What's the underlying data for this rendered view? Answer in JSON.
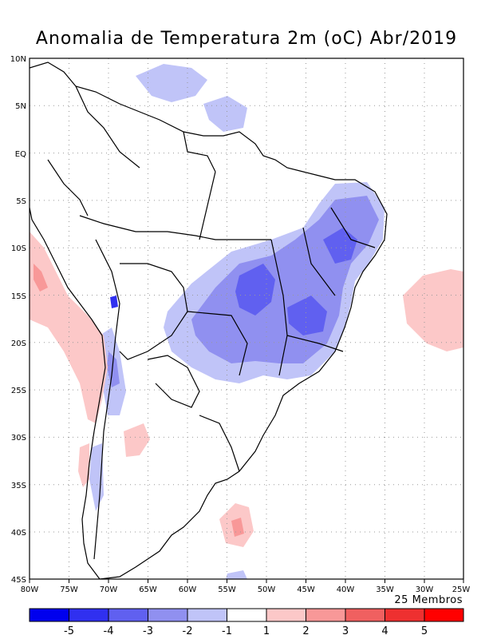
{
  "title": "Anomalia de Temperatura 2m (oC) Abr/2019",
  "members_label": "25 Membros",
  "map": {
    "lon_range": [
      -80,
      -25
    ],
    "lat_range": [
      -45,
      10
    ],
    "lon_ticks": [
      "80W",
      "75W",
      "70W",
      "65W",
      "60W",
      "55W",
      "50W",
      "45W",
      "40W",
      "35W",
      "30W",
      "25W"
    ],
    "lat_ticks": [
      "10N",
      "5N",
      "EQ",
      "5S",
      "10S",
      "15S",
      "20S",
      "25S",
      "30S",
      "35S",
      "40S",
      "45S"
    ],
    "regions": [
      {
        "name": "northeast-brazil-cold",
        "category": -3
      },
      {
        "name": "central-brazil-cold",
        "category": -3
      },
      {
        "name": "pacific-warm",
        "category": 1
      },
      {
        "name": "atlantic-warm",
        "category": 1
      },
      {
        "name": "southern-warm",
        "category": 2
      }
    ]
  },
  "colorbar": {
    "labels": [
      "-5",
      "-4",
      "-3",
      "-2",
      "-1",
      "1",
      "2",
      "3",
      "4",
      "5"
    ],
    "colors": [
      "#0000ee",
      "#3030f0",
      "#6060f0",
      "#9090f0",
      "#c0c4f8",
      "#ffffff",
      "#fcc8c8",
      "#f89898",
      "#f06060",
      "#ee3030",
      "#ff0000"
    ]
  }
}
